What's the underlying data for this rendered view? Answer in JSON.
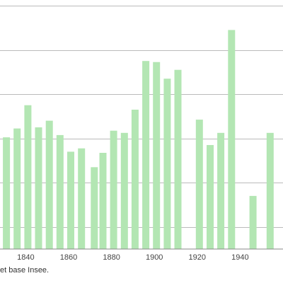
{
  "chart_data": {
    "type": "bar",
    "x": [
      1831,
      1836,
      1841,
      1846,
      1851,
      1856,
      1861,
      1866,
      1872,
      1876,
      1881,
      1886,
      1891,
      1896,
      1901,
      1906,
      1911,
      1921,
      1926,
      1931,
      1936,
      1946,
      1954
    ],
    "values": [
      1010,
      1090,
      1300,
      1100,
      1160,
      1030,
      880,
      910,
      740,
      870,
      1070,
      1050,
      1260,
      1700,
      1690,
      1540,
      1620,
      1170,
      940,
      1050,
      1980,
      480,
      1050
    ],
    "xticks": [
      "1840",
      "1860",
      "1880",
      "1900",
      "1920",
      "1940"
    ],
    "xlim": [
      1828,
      1960
    ],
    "ylim": [
      0,
      2200
    ],
    "gridlines": [
      200,
      600,
      1000,
      1400,
      1800,
      2200
    ],
    "grid": true,
    "bar_color": "#b3e6b3",
    "grid_color": "#bbbbbb"
  },
  "source_text": "et base Insee."
}
